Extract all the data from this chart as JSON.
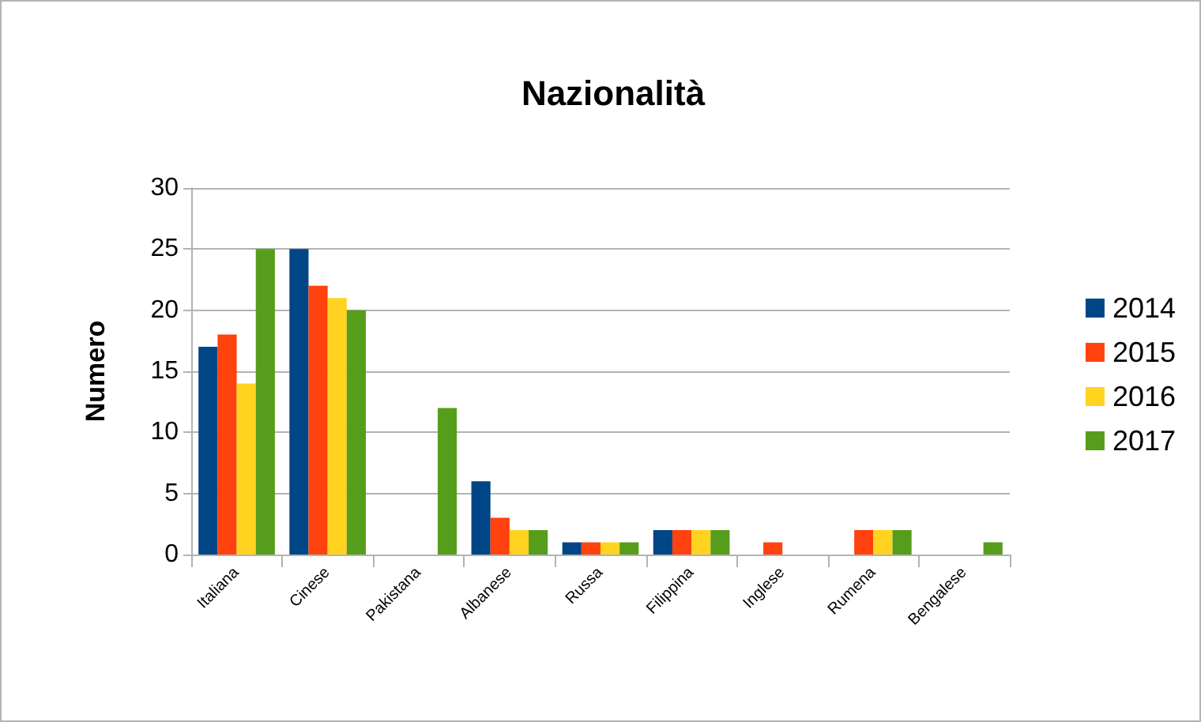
{
  "chart_data": {
    "type": "bar",
    "title": "Nazionalità",
    "ylabel": "Numero",
    "categories": [
      "Italiana",
      "Cinese",
      "Pakistana",
      "Albanese",
      "Russa",
      "Filippina",
      "Inglese",
      "Rumena",
      "Bengalese"
    ],
    "series": [
      {
        "name": "2014",
        "color": "#004586",
        "values": [
          17,
          25,
          0,
          6,
          1,
          2,
          0,
          0,
          0
        ]
      },
      {
        "name": "2015",
        "color": "#ff420e",
        "values": [
          18,
          22,
          0,
          3,
          1,
          2,
          1,
          2,
          0
        ]
      },
      {
        "name": "2016",
        "color": "#ffd320",
        "values": [
          14,
          21,
          0,
          2,
          1,
          2,
          0,
          2,
          0
        ]
      },
      {
        "name": "2017",
        "color": "#579d1c",
        "values": [
          25,
          20,
          12,
          2,
          1,
          2,
          0,
          2,
          1
        ]
      }
    ],
    "ylim": [
      0,
      30
    ],
    "yticks": [
      0,
      5,
      10,
      15,
      20,
      25,
      30
    ],
    "grid": "y",
    "legend": "right"
  }
}
